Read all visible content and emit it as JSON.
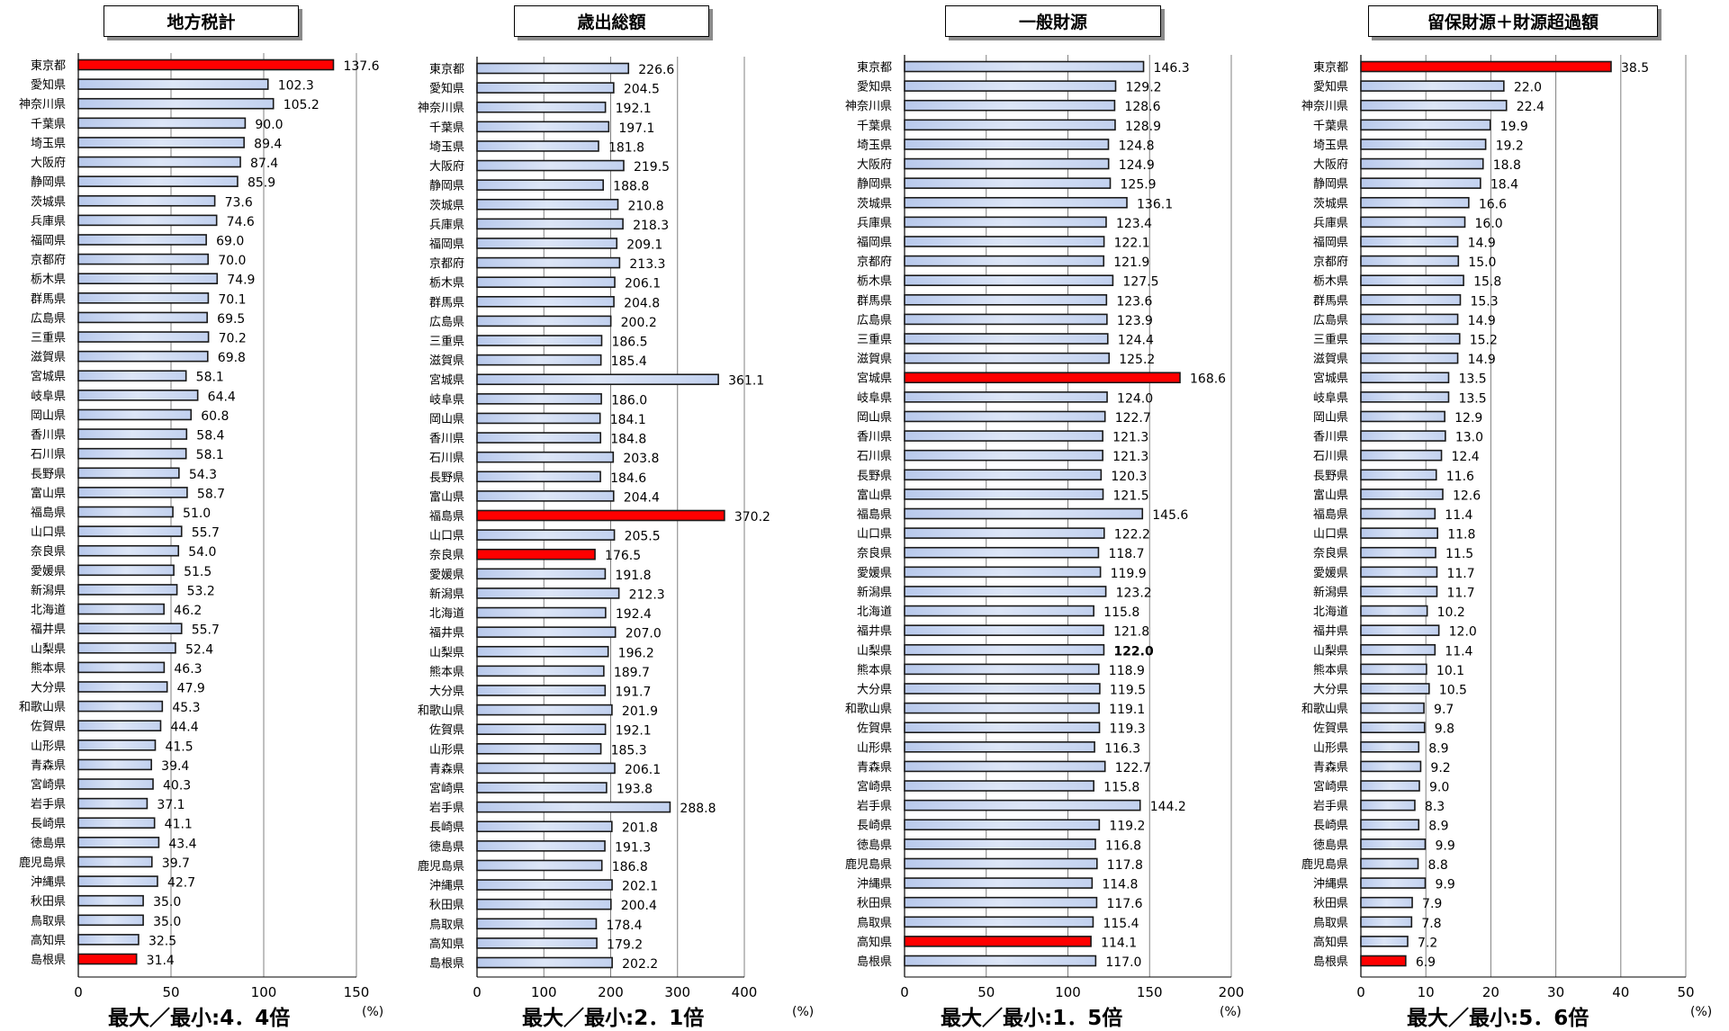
{
  "colors": {
    "bar_normal_fill": "#c6d4ee",
    "bar_highlight_fill": "#ff0000",
    "bar_stroke": "#1a1a1a",
    "grid": "#808080"
  },
  "prefectures": [
    "東京都",
    "愛知県",
    "神奈川県",
    "千葉県",
    "埼玉県",
    "大阪府",
    "静岡県",
    "茨城県",
    "兵庫県",
    "福岡県",
    "京都府",
    "栃木県",
    "群馬県",
    "広島県",
    "三重県",
    "滋賀県",
    "宮城県",
    "岐阜県",
    "岡山県",
    "香川県",
    "石川県",
    "長野県",
    "富山県",
    "福島県",
    "山口県",
    "奈良県",
    "愛媛県",
    "新潟県",
    "北海道",
    "福井県",
    "山梨県",
    "熊本県",
    "大分県",
    "和歌山県",
    "佐賀県",
    "山形県",
    "青森県",
    "宮崎県",
    "岩手県",
    "長崎県",
    "徳島県",
    "鹿児島県",
    "沖縄県",
    "秋田県",
    "鳥取県",
    "高知県",
    "島根県"
  ],
  "panels": [
    {
      "title": "地方税計",
      "footer": "最大／最小:4．4倍",
      "unit": "(%)",
      "chart_data": {
        "type": "bar",
        "orientation": "horizontal",
        "categories_ref": "prefectures",
        "values": [
          137.6,
          102.3,
          105.2,
          90.0,
          89.4,
          87.4,
          85.9,
          73.6,
          74.6,
          69.0,
          70.0,
          74.9,
          70.1,
          69.5,
          70.2,
          69.8,
          58.1,
          64.4,
          60.8,
          58.4,
          58.1,
          54.3,
          58.7,
          51.0,
          55.7,
          54.0,
          51.5,
          53.2,
          46.2,
          55.7,
          52.4,
          46.3,
          47.9,
          45.3,
          44.4,
          41.5,
          39.4,
          40.3,
          37.1,
          41.1,
          43.4,
          39.7,
          42.7,
          35.0,
          35.0,
          32.5,
          31.4
        ],
        "value_labels": [
          "137.6",
          "102.3",
          "105.2",
          "90.0",
          "89.4",
          "87.4",
          "85.9",
          "73.6",
          "74.6",
          "69.0",
          "70.0",
          "74.9",
          "70.1",
          "69.5",
          "70.2",
          "69.8",
          "58.1",
          "64.4",
          "60.8",
          "58.4",
          "58.1",
          "54.3",
          "58.7",
          "51.0",
          "55.7",
          "54.0",
          "51.5",
          "53.2",
          "46.2",
          "55.7",
          "52.4",
          "46.3",
          "47.9",
          "45.3",
          "44.4",
          "41.5",
          "39.4",
          "40.3",
          "37.1",
          "41.1",
          "43.4",
          "39.7",
          "42.7",
          "35.0",
          "35.0",
          "32.5",
          "31.4"
        ],
        "highlight": [
          "東京都",
          "島根県"
        ],
        "bold_labels": [],
        "xlim": [
          0,
          150
        ],
        "ticks": [
          "0",
          "50",
          "100",
          "150"
        ],
        "grid": true,
        "xlabel": "(%)"
      }
    },
    {
      "title": "歳出総額",
      "footer": "最大／最小:2．1倍",
      "unit": "(%)",
      "chart_data": {
        "type": "bar",
        "orientation": "horizontal",
        "categories_ref": "prefectures",
        "values": [
          226.6,
          204.5,
          192.1,
          197.1,
          181.8,
          219.5,
          188.8,
          210.8,
          218.3,
          209.1,
          213.3,
          206.1,
          204.8,
          200.2,
          186.5,
          185.4,
          361.1,
          186.0,
          184.1,
          184.8,
          203.8,
          184.6,
          204.4,
          370.2,
          205.5,
          176.5,
          191.8,
          212.3,
          192.4,
          207.0,
          196.2,
          189.7,
          191.7,
          201.9,
          192.1,
          185.3,
          206.1,
          193.8,
          288.8,
          201.8,
          191.3,
          186.8,
          202.1,
          200.4,
          178.4,
          179.2,
          202.2
        ],
        "value_labels": [
          "226.6",
          "204.5",
          "192.1",
          "197.1",
          "181.8",
          "219.5",
          "188.8",
          "210.8",
          "218.3",
          "209.1",
          "213.3",
          "206.1",
          "204.8",
          "200.2",
          "186.5",
          "185.4",
          "361.1",
          "186.0",
          "184.1",
          "184.8",
          "203.8",
          "184.6",
          "204.4",
          "370.2",
          "205.5",
          "176.5",
          "191.8",
          "212.3",
          "192.4",
          "207.0",
          "196.2",
          "189.7",
          "191.7",
          "201.9",
          "192.1",
          "185.3",
          "206.1",
          "193.8",
          "288.8",
          "201.8",
          "191.3",
          "186.8",
          "202.1",
          "200.4",
          "178.4",
          "179.2",
          "202.2"
        ],
        "highlight": [
          "福島県",
          "奈良県"
        ],
        "bold_labels": [],
        "xlim": [
          0,
          400
        ],
        "ticks": [
          "0",
          "100",
          "200",
          "300",
          "400"
        ],
        "grid": true,
        "xlabel": "(%)"
      }
    },
    {
      "title": "一般財源",
      "footer": "最大／最小:1．5倍",
      "unit": "(%)",
      "chart_data": {
        "type": "bar",
        "orientation": "horizontal",
        "categories_ref": "prefectures",
        "values": [
          146.3,
          129.2,
          128.6,
          128.9,
          124.8,
          124.9,
          125.9,
          136.1,
          123.4,
          122.1,
          121.9,
          127.5,
          123.6,
          123.9,
          124.4,
          125.2,
          168.6,
          124.0,
          122.7,
          121.3,
          121.3,
          120.3,
          121.5,
          145.6,
          122.2,
          118.7,
          119.9,
          123.2,
          115.8,
          121.8,
          122.0,
          118.9,
          119.5,
          119.1,
          119.3,
          116.3,
          122.7,
          115.8,
          144.2,
          119.2,
          116.8,
          117.8,
          114.8,
          117.6,
          115.4,
          114.1,
          117.0
        ],
        "value_labels": [
          "146.3",
          "129.2",
          "128.6",
          "128.9",
          "124.8",
          "124.9",
          "125.9",
          "136.1",
          "123.4",
          "122.1",
          "121.9",
          "127.5",
          "123.6",
          "123.9",
          "124.4",
          "125.2",
          "168.6",
          "124.0",
          "122.7",
          "121.3",
          "121.3",
          "120.3",
          "121.5",
          "145.6",
          "122.2",
          "118.7",
          "119.9",
          "123.2",
          "115.8",
          "121.8",
          "122.0",
          "118.9",
          "119.5",
          "119.1",
          "119.3",
          "116.3",
          "122.7",
          "115.8",
          "144.2",
          "119.2",
          "116.8",
          "117.8",
          "114.8",
          "117.6",
          "115.4",
          "114.1",
          "117.0"
        ],
        "highlight": [
          "宮城県",
          "高知県"
        ],
        "bold_labels": [
          "山梨県"
        ],
        "xlim": [
          0,
          200
        ],
        "ticks": [
          "0",
          "50",
          "100",
          "150",
          "200"
        ],
        "grid": true,
        "xlabel": "(%)"
      }
    },
    {
      "title": "留保財源＋財源超過額",
      "footer": "最大／最小:5．6倍",
      "unit": "(%)",
      "chart_data": {
        "type": "bar",
        "orientation": "horizontal",
        "categories_ref": "prefectures",
        "values": [
          38.5,
          22.0,
          22.4,
          19.9,
          19.2,
          18.8,
          18.4,
          16.6,
          16.0,
          14.9,
          15.0,
          15.8,
          15.3,
          14.9,
          15.2,
          14.9,
          13.5,
          13.5,
          12.9,
          13.0,
          12.4,
          11.6,
          12.6,
          11.4,
          11.8,
          11.5,
          11.7,
          11.7,
          10.2,
          12.0,
          11.4,
          10.1,
          10.5,
          9.7,
          9.8,
          8.9,
          9.2,
          9.0,
          8.3,
          8.9,
          9.9,
          8.8,
          9.9,
          7.9,
          7.8,
          7.2,
          6.9
        ],
        "value_labels": [
          "38.5",
          "22.0",
          "22.4",
          "19.9",
          "19.2",
          "18.8",
          "18.4",
          "16.6",
          "16.0",
          "14.9",
          "15.0",
          "15.8",
          "15.3",
          "14.9",
          "15.2",
          "14.9",
          "13.5",
          "13.5",
          "12.9",
          "13.0",
          "12.4",
          "11.6",
          "12.6",
          "11.4",
          "11.8",
          "11.5",
          "11.7",
          "11.7",
          "10.2",
          "12.0",
          "11.4",
          "10.1",
          "10.5",
          "9.7",
          "9.8",
          "8.9",
          "9.2",
          "9.0",
          "8.3",
          "8.9",
          "9.9",
          "8.8",
          "9.9",
          "7.9",
          "7.8",
          "7.2",
          "6.9"
        ],
        "highlight": [
          "東京都",
          "島根県"
        ],
        "bold_labels": [],
        "xlim": [
          0,
          50
        ],
        "ticks": [
          "0",
          "10",
          "20",
          "30",
          "40",
          "50"
        ],
        "grid": true,
        "xlabel": "(%)"
      }
    }
  ]
}
